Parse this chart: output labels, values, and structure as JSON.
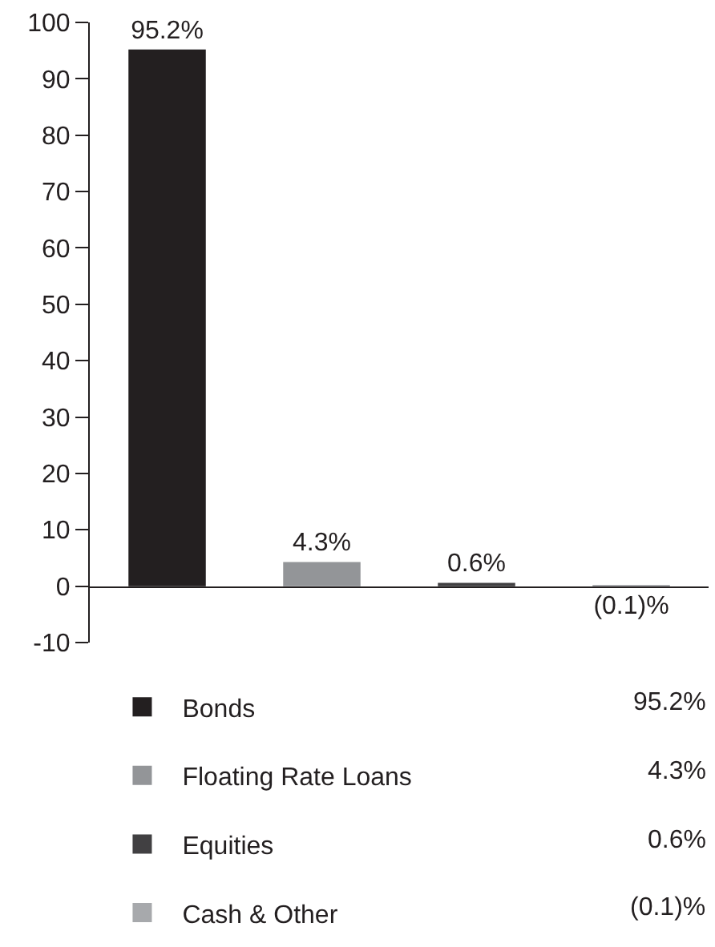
{
  "chart_data": {
    "type": "bar",
    "categories": [
      null,
      null,
      null,
      null
    ],
    "series": [
      {
        "name": "Bonds",
        "color": "#231f20",
        "values": [
          95.2,
          null,
          null,
          null
        ],
        "value_labels": [
          "95.2%",
          null,
          null,
          null
        ]
      },
      {
        "name": "Floating Rate Loans",
        "color": "#939598",
        "values": [
          null,
          4.3,
          null,
          null
        ],
        "value_labels": [
          null,
          "4.3%",
          null,
          null
        ]
      },
      {
        "name": "Equities",
        "color": "#414042",
        "values": [
          null,
          null,
          0.6,
          null
        ],
        "value_labels": [
          null,
          null,
          "0.6%",
          null
        ]
      },
      {
        "name": "Cash & Other",
        "color": "#a7a9ac",
        "values": [
          null,
          null,
          null,
          -0.1
        ],
        "value_labels": [
          null,
          null,
          null,
          "(0.1)%"
        ]
      }
    ],
    "ylim": [
      -10,
      100
    ],
    "yticks": [
      -10,
      0,
      10,
      20,
      30,
      40,
      50,
      60,
      70,
      80,
      90,
      100
    ],
    "tick_labels": "y",
    "legend": "bottom"
  }
}
